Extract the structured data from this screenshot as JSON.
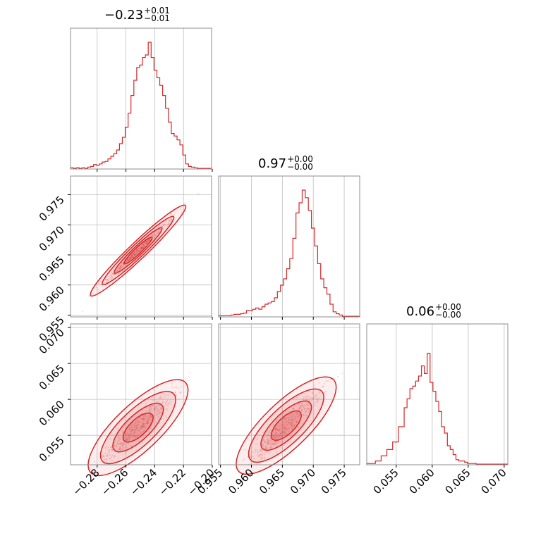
{
  "chart_data": {
    "type": "corner",
    "color": "#d62728",
    "parameters": [
      {
        "title": {
          "value": "−0.23",
          "plus": "+0.01",
          "minus": "−0.01"
        },
        "range": [
          -0.2985,
          -0.2005
        ],
        "ticks": [
          -0.28,
          -0.26,
          -0.24,
          -0.22,
          -0.2
        ],
        "tick_labels": [
          "−0.28",
          "−0.26",
          "−0.24",
          "−0.22",
          "−0.20"
        ],
        "hist": {
          "bin_edges_start": -0.2985,
          "bin_width": 0.002,
          "counts": [
            0.01,
            0.005,
            0.01,
            0.005,
            0.01,
            0.005,
            0.015,
            0.02,
            0.035,
            0.03,
            0.04,
            0.055,
            0.06,
            0.08,
            0.1,
            0.12,
            0.15,
            0.2,
            0.25,
            0.33,
            0.44,
            0.58,
            0.7,
            0.8,
            0.82,
            0.88,
            0.9,
            1.0,
            0.88,
            0.78,
            0.72,
            0.66,
            0.58,
            0.48,
            0.37,
            0.28,
            0.26,
            0.23,
            0.19,
            0.11,
            0.04,
            0.02,
            0.015,
            0.01,
            0.005,
            0.005,
            0.005,
            0.005,
            0.005
          ]
        }
      },
      {
        "title": {
          "value": "0.97",
          "plus": "+0.00",
          "minus": "−0.00"
        },
        "range": [
          0.9547,
          0.9775
        ],
        "ticks": [
          0.955,
          0.96,
          0.965,
          0.97,
          0.975
        ],
        "tick_labels": [
          "0.955",
          "0.960",
          "0.965",
          "0.970",
          "0.975"
        ],
        "hist": {
          "bin_edges_start": 0.9547,
          "bin_width": 0.0005,
          "counts": [
            0.01,
            0.01,
            0.01,
            0.01,
            0.015,
            0.02,
            0.02,
            0.025,
            0.03,
            0.05,
            0.05,
            0.06,
            0.07,
            0.06,
            0.08,
            0.1,
            0.11,
            0.12,
            0.15,
            0.2,
            0.25,
            0.3,
            0.38,
            0.46,
            0.62,
            0.82,
            0.9,
            1.0,
            0.94,
            0.84,
            0.7,
            0.56,
            0.42,
            0.3,
            0.23,
            0.18,
            0.1,
            0.04,
            0.025,
            0.015,
            0.005,
            0.005,
            0.005,
            0.005,
            0.005,
            0.005
          ]
        }
      },
      {
        "title": {
          "value": "0.06",
          "plus": "+0.00",
          "minus": "−0.00"
        },
        "range": [
          0.0509,
          0.0705
        ],
        "ticks": [
          0.055,
          0.06,
          0.065,
          0.07
        ],
        "tick_labels": [
          "0.055",
          "0.060",
          "0.065",
          "0.070"
        ],
        "hist": {
          "bin_edges_start": 0.0509,
          "bin_width": 0.0004,
          "counts": [
            0.01,
            0.01,
            0.01,
            0.03,
            0.03,
            0.07,
            0.07,
            0.12,
            0.12,
            0.18,
            0.18,
            0.3,
            0.3,
            0.45,
            0.52,
            0.6,
            0.62,
            0.66,
            0.7,
            0.78,
            0.72,
            0.88,
            0.65,
            0.58,
            0.5,
            0.42,
            0.3,
            0.25,
            0.15,
            0.12,
            0.08,
            0.04,
            0.03,
            0.03,
            0.02,
            0.01,
            0.01,
            0.01,
            0.005,
            0.005,
            0.005,
            0.005,
            0.005,
            0.005,
            0.005,
            0.005,
            0.005,
            0.005,
            0.005
          ]
        }
      }
    ],
    "correlations": {
      "0-1": {
        "slope": 0.2273,
        "intercept": 1.0229,
        "spread": 0.0004
      },
      "0-2": {
        "slope": 0.1905,
        "intercept": 0.104,
        "spread": 0.0009
      },
      "1-2": {
        "slope": 0.8333,
        "intercept": -0.7483,
        "spread": 0.0009
      }
    },
    "panel_ranges": {
      "row1_y": [
        0.9547,
        0.9781
      ],
      "row2_y": [
        0.0509,
        0.0705
      ]
    },
    "grid": true
  }
}
